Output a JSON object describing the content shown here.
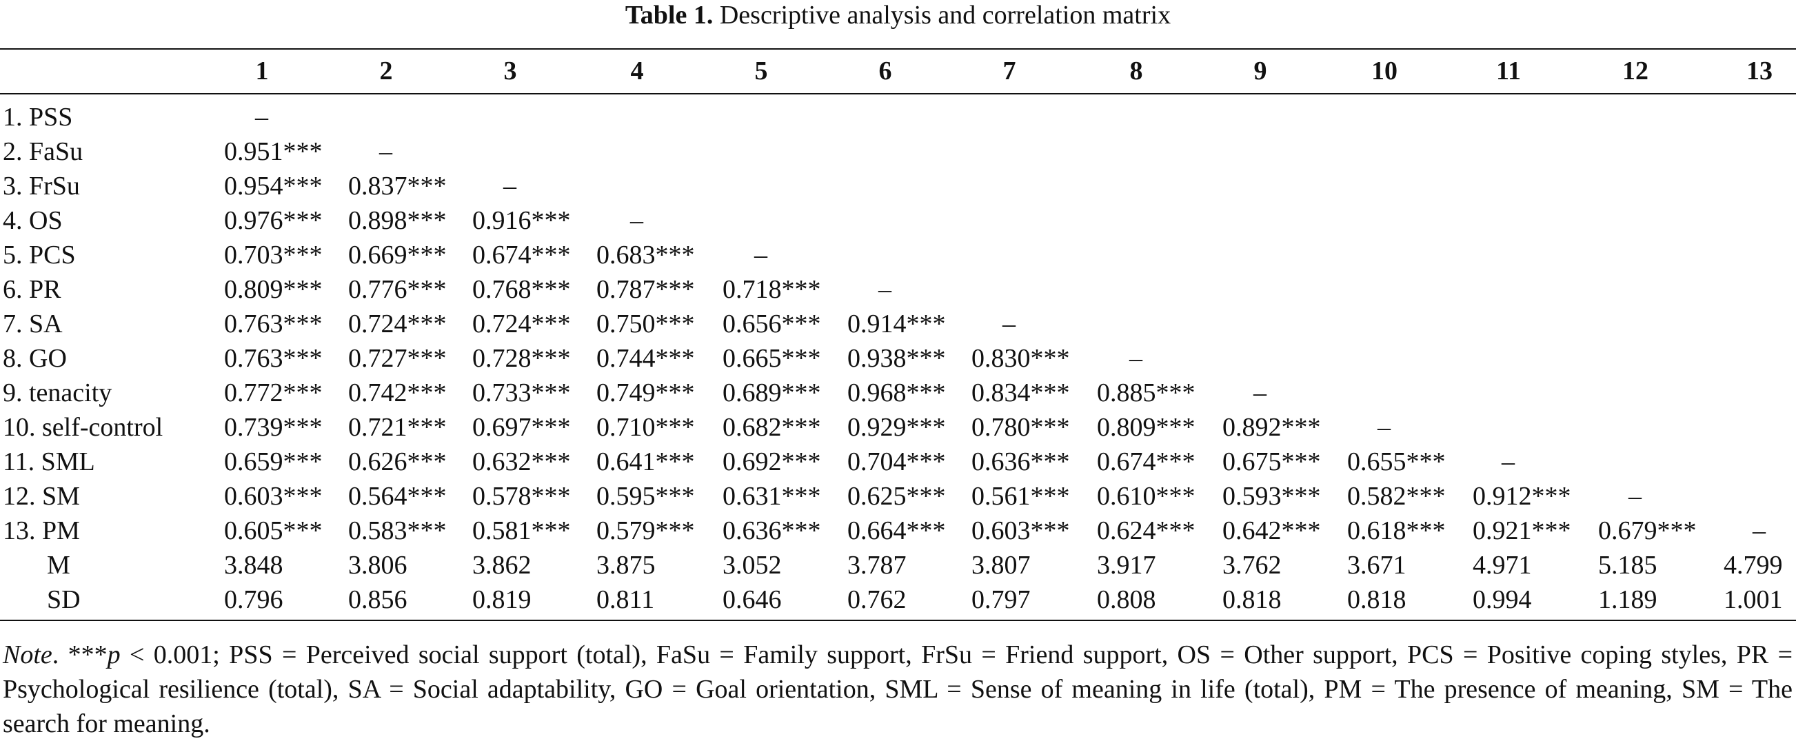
{
  "caption": {
    "label": "Table 1.",
    "title": "Descriptive analysis and correlation matrix"
  },
  "columns": [
    "1",
    "2",
    "3",
    "4",
    "5",
    "6",
    "7",
    "8",
    "9",
    "10",
    "11",
    "12",
    "13"
  ],
  "rows": [
    {
      "label": "1. PSS",
      "cells": [
        "–"
      ]
    },
    {
      "label": "2. FaSu",
      "cells": [
        "0.951***",
        "–"
      ]
    },
    {
      "label": "3. FrSu",
      "cells": [
        "0.954***",
        "0.837***",
        "–"
      ]
    },
    {
      "label": "4. OS",
      "cells": [
        "0.976***",
        "0.898***",
        "0.916***",
        "–"
      ]
    },
    {
      "label": "5. PCS",
      "cells": [
        "0.703***",
        "0.669***",
        "0.674***",
        "0.683***",
        "–"
      ]
    },
    {
      "label": "6. PR",
      "cells": [
        "0.809***",
        "0.776***",
        "0.768***",
        "0.787***",
        "0.718***",
        "–"
      ]
    },
    {
      "label": "7. SA",
      "cells": [
        "0.763***",
        "0.724***",
        "0.724***",
        "0.750***",
        "0.656***",
        "0.914***",
        "–"
      ]
    },
    {
      "label": "8. GO",
      "cells": [
        "0.763***",
        "0.727***",
        "0.728***",
        "0.744***",
        "0.665***",
        "0.938***",
        "0.830***",
        "–"
      ]
    },
    {
      "label": "9. tenacity",
      "cells": [
        "0.772***",
        "0.742***",
        "0.733***",
        "0.749***",
        "0.689***",
        "0.968***",
        "0.834***",
        "0.885***",
        "–"
      ]
    },
    {
      "label": "10. self-control",
      "cells": [
        "0.739***",
        "0.721***",
        "0.697***",
        "0.710***",
        "0.682***",
        "0.929***",
        "0.780***",
        "0.809***",
        "0.892***",
        "–"
      ]
    },
    {
      "label": "11. SML",
      "cells": [
        "0.659***",
        "0.626***",
        "0.632***",
        "0.641***",
        "0.692***",
        "0.704***",
        "0.636***",
        "0.674***",
        "0.675***",
        "0.655***",
        "–"
      ]
    },
    {
      "label": "12. SM",
      "cells": [
        "0.603***",
        "0.564***",
        "0.578***",
        "0.595***",
        "0.631***",
        "0.625***",
        "0.561***",
        "0.610***",
        "0.593***",
        "0.582***",
        "0.912***",
        "–"
      ]
    },
    {
      "label": "13. PM",
      "cells": [
        "0.605***",
        "0.583***",
        "0.581***",
        "0.579***",
        "0.636***",
        "0.664***",
        "0.603***",
        "0.624***",
        "0.642***",
        "0.618***",
        "0.921***",
        "0.679***",
        "–"
      ]
    },
    {
      "label": "M",
      "cells": [
        "3.848",
        "3.806",
        "3.862",
        "3.875",
        "3.052",
        "3.787",
        "3.807",
        "3.917",
        "3.762",
        "3.671",
        "4.971",
        "5.185",
        "4.799"
      ]
    },
    {
      "label": "SD",
      "cells": [
        "0.796",
        "0.856",
        "0.819",
        "0.811",
        "0.646",
        "0.762",
        "0.797",
        "0.808",
        "0.818",
        "0.818",
        "0.994",
        "1.189",
        "1.001"
      ]
    }
  ],
  "note": {
    "lead": "Note",
    "p_symbol": "***p",
    "p_text": " < 0.001; PSS = Perceived social support (total), FaSu = Family support, FrSu = Friend support, OS = Other support, PCS = Positive coping styles, PR = Psychological resilience (total), SA = Social adaptability, GO = Goal orientation, SML = Sense of meaning in life (total), PM = The presence of meaning, SM = The search for meaning."
  }
}
